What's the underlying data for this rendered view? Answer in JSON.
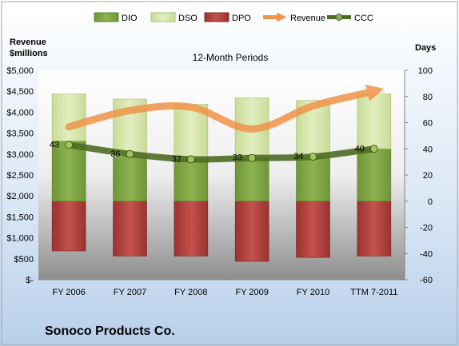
{
  "company": "Sonoco Products Co.",
  "chart_data": {
    "type": "bar",
    "title": "12-Month Periods",
    "categories": [
      "FY 2006",
      "FY 2007",
      "FY 2008",
      "FY 2009",
      "FY 2010",
      "TTM 7-2011"
    ],
    "left_axis": {
      "label_line1": "Revenue",
      "label_line2": "$millions",
      "range": [
        0,
        5000
      ],
      "ticks": [
        "$-",
        "$500",
        "$1,000",
        "$1,500",
        "$2,000",
        "$2,500",
        "$3,000",
        "$3,500",
        "$4,000",
        "$4,500",
        "$5,000"
      ]
    },
    "right_axis": {
      "label": "Days",
      "range": [
        -60,
        100
      ],
      "ticks": [
        "-60",
        "-40",
        "-20",
        "0",
        "20",
        "40",
        "60",
        "80",
        "100"
      ]
    },
    "legend": {
      "placement": "top",
      "entries": [
        {
          "key": "dio",
          "name": "DIO",
          "color": "#7fa34a"
        },
        {
          "key": "dso",
          "name": "DSO",
          "color": "#d6e7a8"
        },
        {
          "key": "dpo",
          "name": "DPO",
          "color": "#b0403c"
        },
        {
          "key": "revenue",
          "name": "Revenue",
          "color": "#f0944a"
        },
        {
          "key": "ccc",
          "name": "CCC",
          "color": "#4e6b22"
        }
      ]
    },
    "series": [
      {
        "key": "dio",
        "axis": "right",
        "bottom": [
          38,
          42,
          42,
          44,
          43,
          42
        ],
        "top": [
          0,
          0,
          0,
          0,
          0,
          0
        ]
      },
      {
        "key": "dpo",
        "axis": "right",
        "values": [
          -38,
          -42,
          -42,
          -46,
          -43,
          -42
        ]
      },
      {
        "key": "dio_upper",
        "axis": "right",
        "values": [
          44,
          36,
          32,
          33,
          34,
          40
        ]
      },
      {
        "key": "dso",
        "axis": "right",
        "values": [
          36,
          44,
          42,
          46,
          43,
          42
        ]
      },
      {
        "key": "revenue",
        "axis": "left",
        "values": [
          3650,
          4040,
          4120,
          3600,
          4150,
          4500
        ]
      },
      {
        "key": "ccc",
        "axis": "right",
        "values": [
          43,
          36,
          32,
          33,
          34,
          40
        ]
      }
    ],
    "ccc_labels": [
      "43",
      "36",
      "32",
      "33",
      "34",
      "40"
    ]
  }
}
